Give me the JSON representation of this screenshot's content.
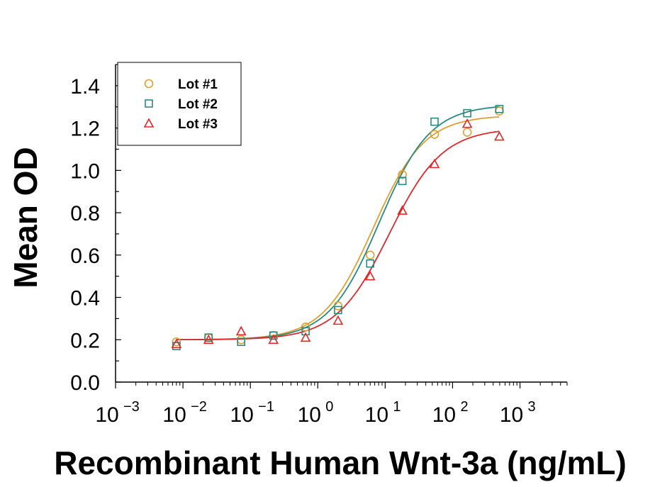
{
  "chart_data": {
    "type": "scatter",
    "xlabel": "Recombinant Human Wnt-3a (ng/mL)",
    "ylabel": "Mean OD",
    "xscale": "log",
    "xlim": [
      0.001,
      5000
    ],
    "ylim": [
      0,
      1.5
    ],
    "x_ticks": [
      0.001,
      0.01,
      0.1,
      1,
      10,
      100,
      1000
    ],
    "y_ticks": [
      "0.0",
      "0.2",
      "0.4",
      "0.6",
      "0.8",
      "1.0",
      "1.2",
      "1.4"
    ],
    "grid": false,
    "legend_position": "top-left",
    "series": [
      {
        "name": "Lot #1",
        "marker": "circle",
        "color": "#E0A030",
        "x": [
          0.008,
          0.024,
          0.073,
          0.22,
          0.66,
          2.0,
          6.0,
          18,
          54,
          165,
          494
        ],
        "y": [
          0.19,
          0.21,
          0.2,
          0.22,
          0.26,
          0.36,
          0.6,
          0.98,
          1.17,
          1.18,
          1.28
        ],
        "fit": {
          "bottom": 0.2,
          "top": 1.26,
          "ec50": 6.7,
          "hill": 1.15
        }
      },
      {
        "name": "Lot #2",
        "marker": "square",
        "color": "#2A8A80",
        "x": [
          0.008,
          0.024,
          0.073,
          0.22,
          0.66,
          2.0,
          6.0,
          18,
          54,
          165,
          494
        ],
        "y": [
          0.17,
          0.21,
          0.19,
          0.22,
          0.24,
          0.34,
          0.56,
          0.95,
          1.23,
          1.27,
          1.29
        ],
        "fit": {
          "bottom": 0.2,
          "top": 1.31,
          "ec50": 8.2,
          "hill": 1.15
        }
      },
      {
        "name": "Lot #3",
        "marker": "triangle",
        "color": "#E0282A",
        "x": [
          0.008,
          0.024,
          0.073,
          0.22,
          0.66,
          2.0,
          6.0,
          18,
          54,
          165,
          494
        ],
        "y": [
          0.18,
          0.2,
          0.24,
          0.2,
          0.21,
          0.29,
          0.5,
          0.81,
          1.03,
          1.22,
          1.16
        ],
        "fit": {
          "bottom": 0.2,
          "top": 1.2,
          "ec50": 11.5,
          "hill": 1.1
        }
      }
    ]
  }
}
